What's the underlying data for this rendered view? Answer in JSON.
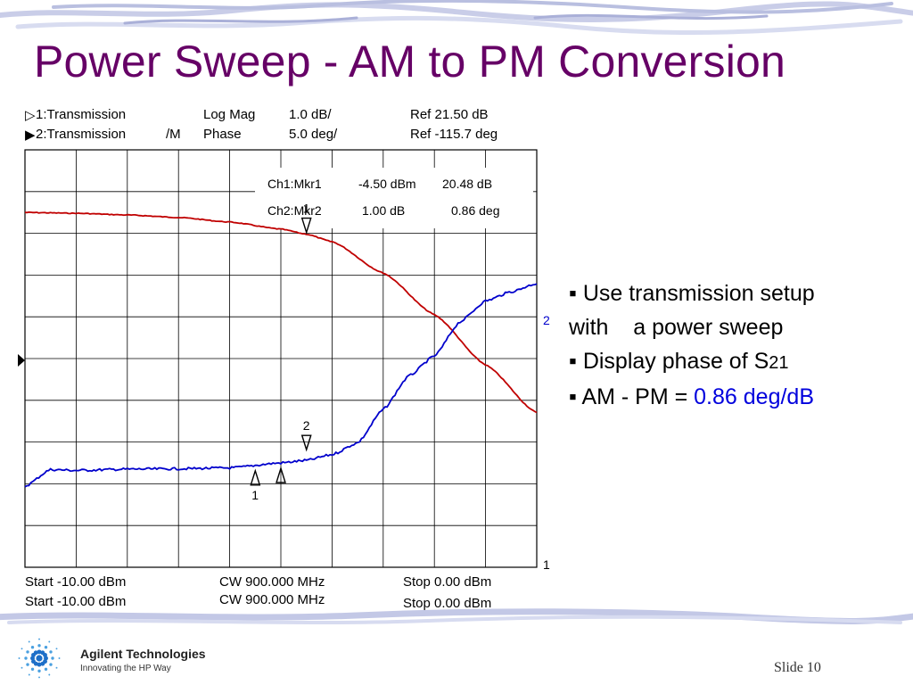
{
  "slide": {
    "title": "Power Sweep - AM to PM Conversion",
    "logo_name": "Agilent Technologies",
    "logo_tagline": "Innovating the HP Way",
    "slide_label": "Slide",
    "slide_number": "10",
    "colors": {
      "title": "#660066",
      "ch1_trace": "#c00000",
      "ch2_trace": "#0000cc",
      "highlight": "#0000dd"
    }
  },
  "analyzer": {
    "channels": [
      {
        "label": "1:Transmission",
        "tag": "",
        "format": "Log Mag",
        "scale": "1.0 dB/",
        "ref": "Ref  21.50 dB"
      },
      {
        "label": "2:Transmission",
        "tag": "/M",
        "format": "Phase",
        "scale": "5.0 deg/",
        "ref": "Ref -115.7 deg"
      }
    ],
    "markers": [
      {
        "label": "Ch1:Mkr1",
        "value1": "-4.50 dBm",
        "value2": "20.48 dB"
      },
      {
        "label": "Ch2:Mkr2",
        "value1": "1.00 dB",
        "value2": "0.86 deg"
      }
    ],
    "footer": [
      {
        "start": "Start -10.00 dBm",
        "cw": "CW 900.000 MHz",
        "stop": "Stop  0.00 dBm"
      },
      {
        "start": "Start -10.00 dBm",
        "cw": "CW 900.000 MHz",
        "stop": "Stop  0.00 dBm"
      }
    ]
  },
  "chart_data": {
    "type": "line",
    "xlabel": "",
    "ylabel": "",
    "xlim": [
      -10,
      0
    ],
    "x_unit": "dBm",
    "grid": true,
    "divisions": {
      "x": 10,
      "y": 10
    },
    "series": [
      {
        "name": "1",
        "channel": 1,
        "unit": "dB",
        "x": [
          -10,
          -9,
          -8,
          -7,
          -6,
          -5,
          -4.5,
          -4,
          -3,
          -2,
          -1,
          0
        ],
        "y": [
          21.0,
          20.98,
          20.94,
          20.88,
          20.77,
          20.6,
          20.48,
          20.3,
          19.55,
          18.55,
          17.35,
          16.2
        ]
      },
      {
        "name": "2",
        "channel": 2,
        "unit": "deg",
        "x": [
          -10,
          -9.5,
          -9,
          -8,
          -7,
          -6,
          -5,
          -4.5,
          -4,
          -3.5,
          -3,
          -2.5,
          -2,
          -1.5,
          -1,
          -0.5,
          0
        ],
        "y": [
          -131.0,
          -129.0,
          -129.1,
          -128.95,
          -128.9,
          -128.8,
          -128.2,
          -127.9,
          -127.2,
          -125.8,
          -121.8,
          -117.8,
          -115.4,
          -111.3,
          -108.8,
          -107.7,
          -106.7
        ]
      }
    ],
    "markers": [
      {
        "channel": 1,
        "number": "1",
        "x": -4.5,
        "y": 20.48
      },
      {
        "channel": 2,
        "number": "2",
        "x": -4.5,
        "y": -127.04
      },
      {
        "channel": 2,
        "number": "1",
        "x": -5.5,
        "y": -128.5
      },
      {
        "channel": 2,
        "number": "",
        "x": -5.0,
        "y": -128.2
      }
    ],
    "trace_end_labels": [
      "2",
      "1"
    ]
  },
  "bullets": [
    {
      "text": "Use transmission setup",
      "continuation": "with    a power sweep"
    },
    {
      "text": "Display phase of S",
      "sub": "21"
    },
    {
      "text": "AM - PM = ",
      "highlight": "0.86 deg/dB"
    }
  ]
}
